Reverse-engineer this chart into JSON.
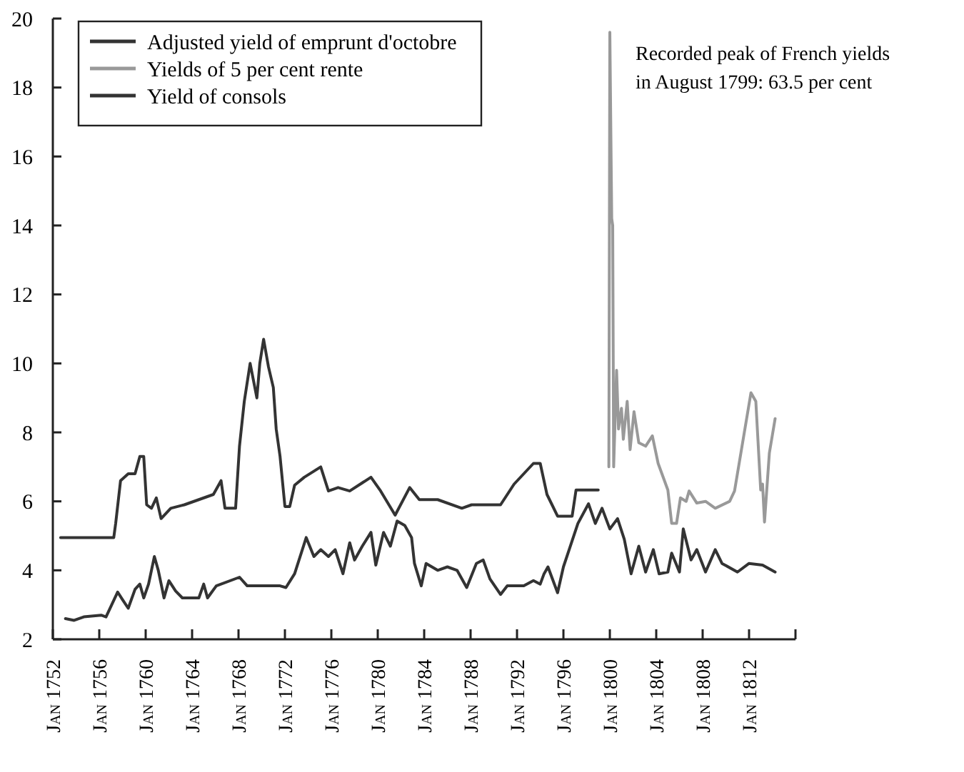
{
  "chart_data": {
    "type": "line",
    "xlim": [
      "1752-01",
      "1816-01"
    ],
    "xticks": [
      {
        "value": "1752-01",
        "label": "Jan 1752"
      },
      {
        "value": "1756-01",
        "label": "Jan 1756"
      },
      {
        "value": "1760-01",
        "label": "Jan 1760"
      },
      {
        "value": "1764-01",
        "label": "Jan 1764"
      },
      {
        "value": "1768-01",
        "label": "Jan 1768"
      },
      {
        "value": "1772-01",
        "label": "Jan 1772"
      },
      {
        "value": "1776-01",
        "label": "Jan 1776"
      },
      {
        "value": "1780-01",
        "label": "Jan 1780"
      },
      {
        "value": "1784-01",
        "label": "Jan 1784"
      },
      {
        "value": "1788-01",
        "label": "Jan 1788"
      },
      {
        "value": "1792-01",
        "label": "Jan 1792"
      },
      {
        "value": "1796-01",
        "label": "Jan 1796"
      },
      {
        "value": "1800-01",
        "label": "Jan 1800"
      },
      {
        "value": "1804-01",
        "label": "Jan 1804"
      },
      {
        "value": "1808-01",
        "label": "Jan 1808"
      },
      {
        "value": "1812-01",
        "label": "Jan 1812"
      }
    ],
    "ylim": [
      2,
      20
    ],
    "yticks": [
      2,
      4,
      6,
      8,
      10,
      12,
      14,
      16,
      18,
      20
    ],
    "grid": false,
    "legend": "top left",
    "marker": "none",
    "line_style": "solid",
    "annotations": [
      "Recorded peak of French yields in August 1799: 63.5 per cent"
    ],
    "series": [
      {
        "name": "Adjusted yield of emprunt d'octobre",
        "color": "#333333",
        "x": [
          "1752-09",
          "1757-04",
          "1757-06",
          "1757-11",
          "1758-07",
          "1759-02",
          "1759-07",
          "1759-11",
          "1760-02",
          "1760-07",
          "1760-12",
          "1761-05",
          "1762-03",
          "1763-05",
          "1764-08",
          "1765-11",
          "1766-07",
          "1766-11",
          "1767-10",
          "1768-02",
          "1768-07",
          "1769-01",
          "1769-08",
          "1769-11",
          "1770-03",
          "1770-08",
          "1771-01",
          "1771-04",
          "1771-08",
          "1772-01",
          "1772-06",
          "1772-11",
          "1773-09",
          "1775-02",
          "1775-10",
          "1776-08",
          "1777-08",
          "1779-06",
          "1780-04",
          "1781-07",
          "1782-10",
          "1783-08",
          "1785-03",
          "1787-04",
          "1788-02",
          "1790-08",
          "1791-10",
          "1793-06",
          "1794-01",
          "1794-08",
          "1795-07",
          "1796-10",
          "1797-02",
          "1799-01"
        ],
        "values": [
          4.95,
          4.95,
          5.36,
          6.6,
          6.8,
          6.8,
          7.3,
          7.3,
          5.9,
          5.8,
          6.1,
          5.5,
          5.8,
          5.9,
          6.05,
          6.2,
          6.6,
          5.8,
          5.8,
          7.6,
          8.9,
          10.0,
          9.0,
          10.0,
          10.7,
          9.9,
          9.3,
          8.1,
          7.3,
          5.85,
          5.85,
          6.47,
          6.7,
          7.0,
          6.3,
          6.4,
          6.3,
          6.7,
          6.3,
          5.6,
          6.4,
          6.05,
          6.05,
          5.8,
          5.9,
          5.9,
          6.5,
          7.1,
          7.1,
          6.2,
          5.57,
          5.57,
          6.33,
          6.33
        ]
      },
      {
        "name": "Yields of 5 per cent rente",
        "color": "#999999",
        "x": [
          "1799-12",
          "1800-01",
          "1800-03",
          "1800-04",
          "1800-05",
          "1800-08",
          "1800-10",
          "1801-01",
          "1801-03",
          "1801-07",
          "1801-10",
          "1802-02",
          "1802-07",
          "1803-02",
          "1803-09",
          "1804-03",
          "1805-01",
          "1805-05",
          "1805-10",
          "1806-02",
          "1806-08",
          "1806-11",
          "1807-07",
          "1808-04",
          "1809-02",
          "1810-05",
          "1810-10",
          "1812-03",
          "1812-08",
          "1813-01",
          "1813-03",
          "1813-05",
          "1813-10",
          "1814-04"
        ],
        "values": [
          7.0,
          19.6,
          14.2,
          14.0,
          7.0,
          9.8,
          8.1,
          8.7,
          7.8,
          8.9,
          7.5,
          8.6,
          7.7,
          7.6,
          7.9,
          7.1,
          6.33,
          5.36,
          5.36,
          6.1,
          6.0,
          6.3,
          5.95,
          6.0,
          5.8,
          6.0,
          6.3,
          9.15,
          8.9,
          6.33,
          6.5,
          5.4,
          7.4,
          8.4
        ]
      },
      {
        "name": "Yield of consols",
        "color": "#333333",
        "x": [
          "1753-02",
          "1753-11",
          "1754-09",
          "1756-03",
          "1756-08",
          "1757-08",
          "1758-01",
          "1758-07",
          "1759-02",
          "1759-07",
          "1759-11",
          "1760-04",
          "1760-10",
          "1761-02",
          "1761-08",
          "1762-01",
          "1762-08",
          "1763-03",
          "1764-08",
          "1765-01",
          "1765-05",
          "1766-02",
          "1768-02",
          "1768-10",
          "1770-01",
          "1771-08",
          "1772-02",
          "1772-11",
          "1773-11",
          "1774-07",
          "1775-02",
          "1775-10",
          "1776-05",
          "1777-01",
          "1777-08",
          "1778-01",
          "1778-09",
          "1779-06",
          "1779-11",
          "1780-07",
          "1781-02",
          "1781-09",
          "1782-05",
          "1782-12",
          "1783-03",
          "1783-10",
          "1784-03",
          "1785-03",
          "1786-01",
          "1786-11",
          "1787-09",
          "1788-07",
          "1789-02",
          "1789-09",
          "1790-08",
          "1791-03",
          "1792-08",
          "1793-06",
          "1794-01",
          "1794-05",
          "1794-09",
          "1795-07",
          "1796-01",
          "1797-04",
          "1798-03",
          "1798-10",
          "1799-05",
          "1800-01",
          "1800-09",
          "1801-04",
          "1801-11",
          "1802-07",
          "1803-02",
          "1803-10",
          "1804-04",
          "1805-01",
          "1805-05",
          "1806-01",
          "1806-05",
          "1807-01",
          "1807-07",
          "1808-04",
          "1809-02",
          "1809-09",
          "1811-01",
          "1812-01",
          "1813-03",
          "1814-04"
        ],
        "values": [
          2.6,
          2.55,
          2.65,
          2.7,
          2.65,
          3.37,
          3.15,
          2.9,
          3.45,
          3.6,
          3.2,
          3.6,
          4.4,
          4.0,
          3.2,
          3.7,
          3.4,
          3.2,
          3.2,
          3.6,
          3.2,
          3.55,
          3.8,
          3.55,
          3.55,
          3.55,
          3.5,
          3.9,
          4.95,
          4.4,
          4.6,
          4.4,
          4.6,
          3.9,
          4.8,
          4.3,
          4.7,
          5.1,
          4.15,
          5.1,
          4.7,
          5.43,
          5.3,
          4.95,
          4.2,
          3.55,
          4.2,
          4.0,
          4.1,
          4.0,
          3.5,
          4.2,
          4.3,
          3.75,
          3.3,
          3.55,
          3.55,
          3.7,
          3.6,
          3.9,
          4.1,
          3.35,
          4.1,
          5.36,
          5.93,
          5.36,
          5.8,
          5.2,
          5.5,
          4.9,
          3.9,
          4.7,
          3.95,
          4.6,
          3.9,
          3.95,
          4.5,
          3.95,
          5.2,
          4.3,
          4.6,
          3.95,
          4.6,
          4.2,
          3.95,
          4.2,
          4.15,
          3.95
        ]
      }
    ]
  }
}
